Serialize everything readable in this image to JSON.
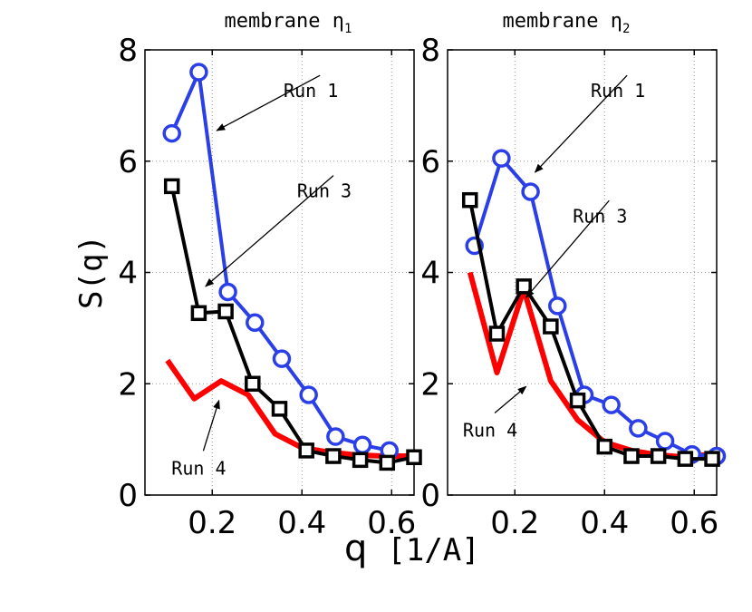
{
  "chart_data": [
    {
      "type": "line",
      "title": "membrane η",
      "title_subscript": "1",
      "ylabel": "S(q)",
      "xlim": [
        0.05,
        0.65
      ],
      "ylim": [
        0,
        8
      ],
      "xticks": [
        "0.2",
        "0.4",
        "0.6"
      ],
      "xtick_values": [
        0.2,
        0.4,
        0.6
      ],
      "yticks": [
        "0",
        "2",
        "4",
        "6",
        "8"
      ],
      "ytick_values": [
        0,
        2,
        4,
        6,
        8
      ],
      "grid": true,
      "series": [
        {
          "name": "Run 1",
          "color": "#2b3fe8",
          "marker": "circle",
          "x": [
            0.11,
            0.17,
            0.235,
            0.295,
            0.355,
            0.415,
            0.475,
            0.535,
            0.595
          ],
          "y": [
            6.5,
            7.6,
            3.65,
            3.1,
            2.45,
            1.8,
            1.05,
            0.9,
            0.8
          ]
        },
        {
          "name": "Run 3",
          "color": "#000000",
          "marker": "square",
          "x": [
            0.11,
            0.17,
            0.23,
            0.29,
            0.35,
            0.41,
            0.47,
            0.53,
            0.59,
            0.65
          ],
          "y": [
            5.55,
            3.27,
            3.3,
            2.0,
            1.55,
            0.8,
            0.7,
            0.63,
            0.58,
            0.68
          ]
        },
        {
          "name": "Run 4",
          "color": "#ff0000",
          "marker": "none",
          "x": [
            0.1,
            0.16,
            0.22,
            0.28,
            0.34,
            0.4,
            0.46,
            0.52,
            0.58,
            0.65
          ],
          "y": [
            2.42,
            1.73,
            2.05,
            1.8,
            1.1,
            0.85,
            0.77,
            0.72,
            0.7,
            0.7
          ]
        }
      ],
      "annotations": [
        {
          "text": "Run 1",
          "tx": 0.42,
          "ty": 7.15,
          "ax": 0.21,
          "ay": 6.55
        },
        {
          "text": "Run 3",
          "tx": 0.45,
          "ty": 5.35,
          "ax": 0.185,
          "ay": 3.75
        },
        {
          "text": "Run 4",
          "tx": 0.17,
          "ty": 0.37,
          "ax": 0.215,
          "ay": 1.7
        }
      ]
    },
    {
      "type": "line",
      "title": "membrane η",
      "title_subscript": "2",
      "xlim": [
        0.05,
        0.65
      ],
      "ylim": [
        0,
        8
      ],
      "xticks": [
        "0.2",
        "0.4",
        "0.6"
      ],
      "xtick_values": [
        0.2,
        0.4,
        0.6
      ],
      "yticks": [
        "0",
        "2",
        "4",
        "6",
        "8"
      ],
      "ytick_values": [
        0,
        2,
        4,
        6,
        8
      ],
      "grid": true,
      "series": [
        {
          "name": "Run 1",
          "color": "#2b3fe8",
          "marker": "circle",
          "x": [
            0.11,
            0.17,
            0.235,
            0.295,
            0.355,
            0.415,
            0.475,
            0.535,
            0.595,
            0.65
          ],
          "y": [
            4.48,
            6.05,
            5.45,
            3.4,
            1.8,
            1.62,
            1.2,
            0.97,
            0.73,
            0.7
          ]
        },
        {
          "name": "Run 3",
          "color": "#000000",
          "marker": "square",
          "x": [
            0.1,
            0.16,
            0.22,
            0.28,
            0.34,
            0.4,
            0.46,
            0.52,
            0.58,
            0.64
          ],
          "y": [
            5.3,
            2.9,
            3.75,
            3.03,
            1.7,
            0.87,
            0.7,
            0.7,
            0.65,
            0.65
          ]
        },
        {
          "name": "Run 4",
          "color": "#ff0000",
          "marker": "none",
          "x": [
            0.1,
            0.16,
            0.22,
            0.28,
            0.34,
            0.4,
            0.46,
            0.52,
            0.58,
            0.65
          ],
          "y": [
            4.0,
            2.2,
            3.7,
            2.05,
            1.35,
            0.95,
            0.8,
            0.72,
            0.68,
            0.75
          ]
        }
      ],
      "annotations": [
        {
          "text": "Run 1",
          "tx": 0.43,
          "ty": 7.15,
          "ax": 0.245,
          "ay": 5.8
        },
        {
          "text": "Run 3",
          "tx": 0.39,
          "ty": 4.9,
          "ax": 0.225,
          "ay": 3.55
        },
        {
          "text": "Run 4",
          "tx": 0.145,
          "ty": 1.05,
          "ax": 0.225,
          "ay": 1.95
        }
      ]
    }
  ],
  "figure": {
    "xlabel_q": "q",
    "xlabel_unit": "[1/A]"
  }
}
